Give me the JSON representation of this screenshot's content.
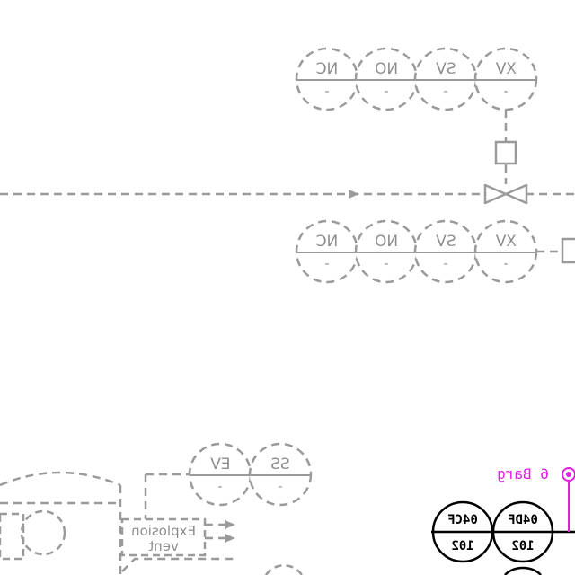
{
  "top_group": {
    "bubbles": [
      {
        "tag": "NC",
        "number": "-"
      },
      {
        "tag": "NO",
        "number": "-"
      },
      {
        "tag": "SV",
        "number": "-"
      },
      {
        "tag": "XV",
        "number": "-"
      }
    ]
  },
  "middle_group": {
    "bubbles": [
      {
        "tag": "NC",
        "number": "-"
      },
      {
        "tag": "NO",
        "number": "-"
      },
      {
        "tag": "SV",
        "number": "-"
      },
      {
        "tag": "XV",
        "number": "-"
      }
    ]
  },
  "lower_group": {
    "bubbles": [
      {
        "tag": "EV",
        "number": "-"
      },
      {
        "tag": "SS",
        "number": "-"
      }
    ]
  },
  "explosion_vent": {
    "line1": "Explosion",
    "line2": "vent"
  },
  "active_instruments": [
    {
      "tag": "04CF",
      "number": "102"
    },
    {
      "tag": "04DF",
      "number": "102"
    }
  ],
  "signal": {
    "label": "6 Barg"
  },
  "colors": {
    "inactive": "#9a9a9a",
    "active": "#000000",
    "signal": "#e020e0"
  }
}
